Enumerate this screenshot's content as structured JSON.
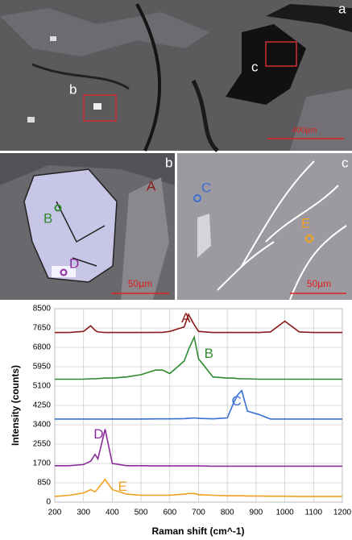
{
  "images": {
    "panel_a": {
      "letter": "a",
      "site_b": "b",
      "site_c": "c",
      "scale": "400µm"
    },
    "panel_b": {
      "letter": "b",
      "point_a": "A",
      "point_b": "B",
      "point_d": "D",
      "scale": "50µm"
    },
    "panel_c": {
      "letter": "c",
      "point_c": "C",
      "point_e": "E",
      "scale": "50µm"
    }
  },
  "chart_data": {
    "type": "line",
    "x_label": "Raman shift (cm^-1)",
    "y_label": "Intensity (counts)",
    "x": [
      200,
      250,
      300,
      325,
      340,
      350,
      375,
      400,
      450,
      500,
      550,
      575,
      600,
      650,
      665,
      685,
      700,
      750,
      800,
      820,
      835,
      850,
      870,
      910,
      950,
      1000,
      1050,
      1100,
      1150,
      1200
    ],
    "series": [
      {
        "name": "A",
        "color": "#8b1a1a",
        "values": [
          7450,
          7450,
          7500,
          7750,
          7550,
          7480,
          7450,
          7450,
          7450,
          7450,
          7460,
          7460,
          7500,
          7700,
          8250,
          7800,
          7500,
          7450,
          7450,
          7450,
          7450,
          7450,
          7450,
          7450,
          7480,
          7950,
          7480,
          7450,
          7450,
          7450
        ]
      },
      {
        "name": "B",
        "color": "#2e8b2e",
        "values": [
          5400,
          5400,
          5400,
          5420,
          5420,
          5430,
          5450,
          5450,
          5500,
          5600,
          5800,
          5800,
          5650,
          6200,
          6700,
          7250,
          6300,
          5500,
          5450,
          5450,
          5430,
          5420,
          5420,
          5400,
          5400,
          5400,
          5400,
          5400,
          5400,
          5400
        ]
      },
      {
        "name": "C",
        "color": "#3a6fd8",
        "values": [
          3650,
          3650,
          3650,
          3650,
          3650,
          3650,
          3650,
          3650,
          3650,
          3650,
          3660,
          3660,
          3660,
          3670,
          3680,
          3700,
          3680,
          3660,
          3700,
          4300,
          4700,
          4900,
          4000,
          3850,
          3650,
          3650,
          3650,
          3650,
          3650,
          3650
        ]
      },
      {
        "name": "D",
        "color": "#8b2a9b",
        "values": [
          1600,
          1600,
          1650,
          1800,
          2100,
          1900,
          3200,
          1700,
          1600,
          1600,
          1590,
          1590,
          1590,
          1590,
          1590,
          1590,
          1590,
          1580,
          1580,
          1580,
          1580,
          1580,
          1580,
          1580,
          1580,
          1580,
          1580,
          1580,
          1580,
          1580
        ]
      },
      {
        "name": "E",
        "color": "#f0a020",
        "values": [
          250,
          300,
          400,
          550,
          450,
          600,
          1000,
          550,
          350,
          300,
          300,
          300,
          300,
          350,
          380,
          380,
          330,
          300,
          280,
          280,
          280,
          280,
          270,
          270,
          260,
          260,
          250,
          250,
          250,
          250
        ]
      }
    ],
    "xlim": [
      200,
      1200
    ],
    "xticks": [
      200,
      300,
      400,
      500,
      600,
      700,
      800,
      900,
      1000,
      1100,
      1200
    ],
    "ylim": [
      0,
      8500
    ],
    "yticks": [
      0,
      850,
      1700,
      2550,
      3400,
      4250,
      5100,
      5950,
      6800,
      7650,
      8500
    ],
    "grid": true
  }
}
